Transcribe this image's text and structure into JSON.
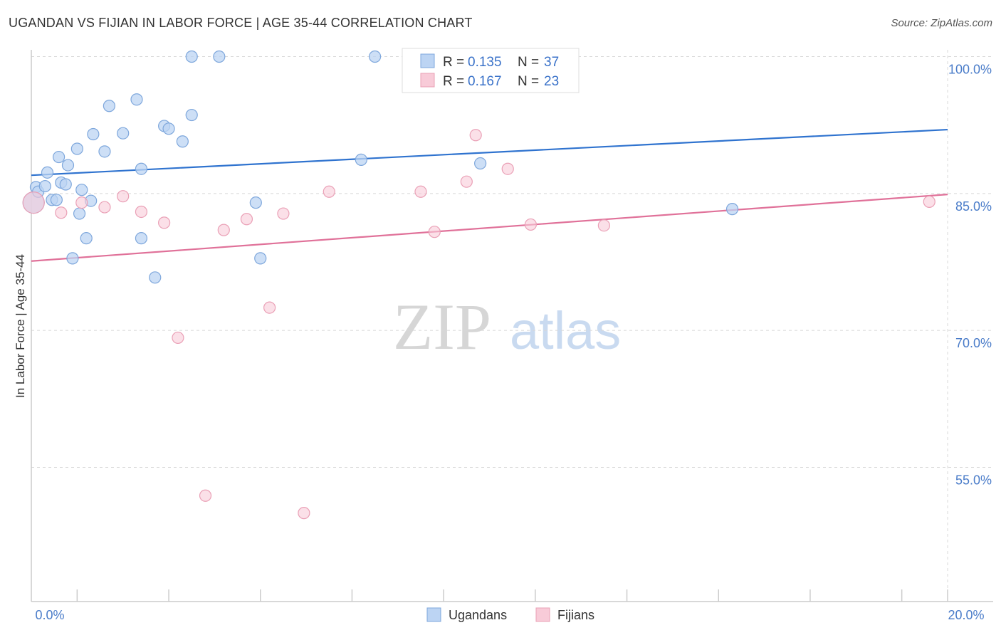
{
  "header": {
    "title": "UGANDAN VS FIJIAN IN LABOR FORCE | AGE 35-44 CORRELATION CHART",
    "source": "Source: ZipAtlas.com"
  },
  "watermark": {
    "zip": "ZIP",
    "atlas": "atlas"
  },
  "legend": {
    "r_label": "R =",
    "n_label": "N =",
    "rows": [
      {
        "series": "Ugandans",
        "r": "0.135",
        "n": "37"
      },
      {
        "series": "Fijians",
        "r": "0.167",
        "n": "23"
      }
    ]
  },
  "bottom_legend": [
    "Ugandans",
    "Fijians"
  ],
  "colors": {
    "ugandan_fill": "#bcd4f3",
    "ugandan_stroke": "#7ea7dc",
    "ugandan_line": "#2f73cf",
    "fijian_fill": "#f8cbd8",
    "fijian_stroke": "#eaa0b6",
    "fijian_line": "#e07199",
    "tick_label": "#4a7cc9",
    "grid": "#d8d8d8"
  },
  "chart_data": {
    "type": "scatter",
    "title": "UGANDAN VS FIJIAN IN LABOR FORCE | AGE 35-44 CORRELATION CHART",
    "xlabel": "",
    "ylabel": "In Labor Force | Age 35-44",
    "xlim": [
      0.0,
      20.0
    ],
    "ylim": [
      40.0,
      102.0
    ],
    "x_tick_labels": [
      "0.0%",
      "20.0%"
    ],
    "y_ticks": [
      100.0,
      85.0,
      70.0,
      55.0
    ],
    "y_tick_labels": [
      "100.0%",
      "85.0%",
      "70.0%",
      "55.0%"
    ],
    "series": [
      {
        "name": "Ugandans",
        "r": 0.135,
        "n": 37,
        "trend": {
          "x": [
            0.0,
            20.0
          ],
          "y": [
            87.0,
            92.0
          ]
        },
        "points": [
          {
            "x": 0.05,
            "y": 84.0,
            "big": true
          },
          {
            "x": 0.1,
            "y": 85.7
          },
          {
            "x": 0.15,
            "y": 85.2
          },
          {
            "x": 0.3,
            "y": 85.8
          },
          {
            "x": 0.35,
            "y": 87.3
          },
          {
            "x": 0.45,
            "y": 84.3
          },
          {
            "x": 0.55,
            "y": 84.3
          },
          {
            "x": 0.6,
            "y": 89.0
          },
          {
            "x": 0.65,
            "y": 86.2
          },
          {
            "x": 0.75,
            "y": 86.0
          },
          {
            "x": 0.8,
            "y": 88.1
          },
          {
            "x": 0.9,
            "y": 77.9
          },
          {
            "x": 1.0,
            "y": 89.9
          },
          {
            "x": 1.05,
            "y": 82.8
          },
          {
            "x": 1.1,
            "y": 85.4
          },
          {
            "x": 1.2,
            "y": 80.1
          },
          {
            "x": 1.3,
            "y": 84.2
          },
          {
            "x": 1.35,
            "y": 91.5
          },
          {
            "x": 1.6,
            "y": 89.6
          },
          {
            "x": 1.7,
            "y": 94.6
          },
          {
            "x": 2.0,
            "y": 91.6
          },
          {
            "x": 2.3,
            "y": 95.3
          },
          {
            "x": 2.4,
            "y": 87.7
          },
          {
            "x": 2.4,
            "y": 80.1
          },
          {
            "x": 2.7,
            "y": 75.8
          },
          {
            "x": 2.9,
            "y": 92.4
          },
          {
            "x": 3.0,
            "y": 92.1
          },
          {
            "x": 3.3,
            "y": 90.7
          },
          {
            "x": 3.5,
            "y": 93.6
          },
          {
            "x": 3.5,
            "y": 100.0
          },
          {
            "x": 4.1,
            "y": 100.0
          },
          {
            "x": 4.9,
            "y": 84.0
          },
          {
            "x": 5.0,
            "y": 77.9
          },
          {
            "x": 7.2,
            "y": 88.7
          },
          {
            "x": 7.5,
            "y": 100.0
          },
          {
            "x": 9.8,
            "y": 88.3
          },
          {
            "x": 15.3,
            "y": 83.3
          }
        ]
      },
      {
        "name": "Fijians",
        "r": 0.167,
        "n": 23,
        "trend": {
          "x": [
            0.0,
            20.0
          ],
          "y": [
            77.6,
            84.9
          ]
        },
        "points": [
          {
            "x": 0.05,
            "y": 84.0,
            "big": true
          },
          {
            "x": 0.65,
            "y": 82.9
          },
          {
            "x": 1.1,
            "y": 84.0
          },
          {
            "x": 1.6,
            "y": 83.5
          },
          {
            "x": 2.0,
            "y": 84.7
          },
          {
            "x": 2.4,
            "y": 83.0
          },
          {
            "x": 2.9,
            "y": 81.8
          },
          {
            "x": 3.2,
            "y": 69.2
          },
          {
            "x": 3.8,
            "y": 51.9
          },
          {
            "x": 4.2,
            "y": 81.0
          },
          {
            "x": 4.7,
            "y": 82.2
          },
          {
            "x": 5.2,
            "y": 72.5
          },
          {
            "x": 5.5,
            "y": 82.8
          },
          {
            "x": 6.5,
            "y": 85.2
          },
          {
            "x": 5.95,
            "y": 50.0
          },
          {
            "x": 8.5,
            "y": 85.2
          },
          {
            "x": 8.8,
            "y": 80.8
          },
          {
            "x": 9.5,
            "y": 86.3
          },
          {
            "x": 9.7,
            "y": 91.4
          },
          {
            "x": 10.4,
            "y": 87.7
          },
          {
            "x": 10.9,
            "y": 81.6
          },
          {
            "x": 12.5,
            "y": 81.5
          },
          {
            "x": 19.6,
            "y": 84.1
          }
        ]
      }
    ]
  }
}
